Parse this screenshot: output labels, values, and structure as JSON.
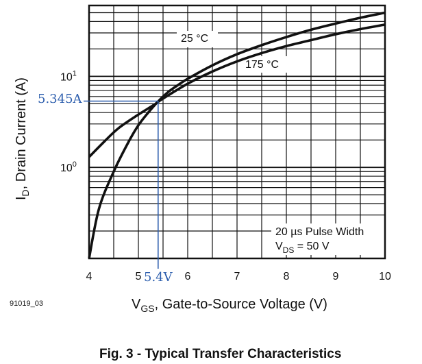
{
  "figure_id": "91019_03",
  "caption": "Fig. 3 - Typical Transfer Characteristics",
  "chart_data": {
    "type": "line",
    "xlabel_main": "V",
    "xlabel_sub": "GS",
    "xlabel_rest": ", Gate-to-Source Voltage (V)",
    "ylabel_main": "I",
    "ylabel_sub": "D",
    "ylabel_rest": ", Drain Current (A)",
    "xlim": [
      4,
      10
    ],
    "ylim": [
      0.1,
      60
    ],
    "yscale": "log",
    "x_ticks": [
      {
        "value": 4,
        "label": "4"
      },
      {
        "value": 5,
        "label": "5"
      },
      {
        "value": 6,
        "label": "6"
      },
      {
        "value": 7,
        "label": "7"
      },
      {
        "value": 8,
        "label": "8"
      },
      {
        "value": 9,
        "label": "9"
      },
      {
        "value": 10,
        "label": "10"
      }
    ],
    "y_ticks": [
      {
        "value": 1,
        "base": "10",
        "exp": "0"
      },
      {
        "value": 10,
        "base": "10",
        "exp": "1"
      }
    ],
    "grid": true,
    "series": [
      {
        "name": "25 °C",
        "x": [
          4.0,
          4.2,
          4.5,
          4.8,
          5.0,
          5.2,
          5.4,
          5.6,
          5.8,
          6.0,
          6.5,
          7.0,
          7.5,
          8.0,
          8.5,
          9.0,
          9.5,
          10.0
        ],
        "y": [
          0.1,
          0.35,
          0.9,
          1.9,
          2.9,
          4.0,
          5.3,
          6.7,
          8.0,
          9.4,
          13.2,
          17.5,
          22.0,
          27.0,
          32.5,
          38.0,
          44.0,
          50.0
        ]
      },
      {
        "name": "175 °C",
        "x": [
          4.0,
          4.3,
          4.6,
          5.0,
          5.3,
          5.5,
          6.0,
          6.5,
          7.0,
          7.5,
          8.0,
          8.5,
          9.0,
          9.5,
          10.0
        ],
        "y": [
          1.3,
          1.9,
          2.7,
          3.8,
          4.8,
          5.7,
          8.3,
          11.3,
          14.6,
          18.0,
          21.5,
          25.0,
          29.0,
          33.0,
          37.0
        ]
      }
    ],
    "annotation": {
      "x": 5.4,
      "y": 5.345,
      "x_label": "5.4V",
      "y_label": "5.345A"
    },
    "legend_lines": [
      {
        "main": "20 µs Pulse Width",
        "sub": "",
        "rest": ""
      },
      {
        "main": "V",
        "sub": "DS",
        "rest": " = 50 V"
      }
    ]
  }
}
